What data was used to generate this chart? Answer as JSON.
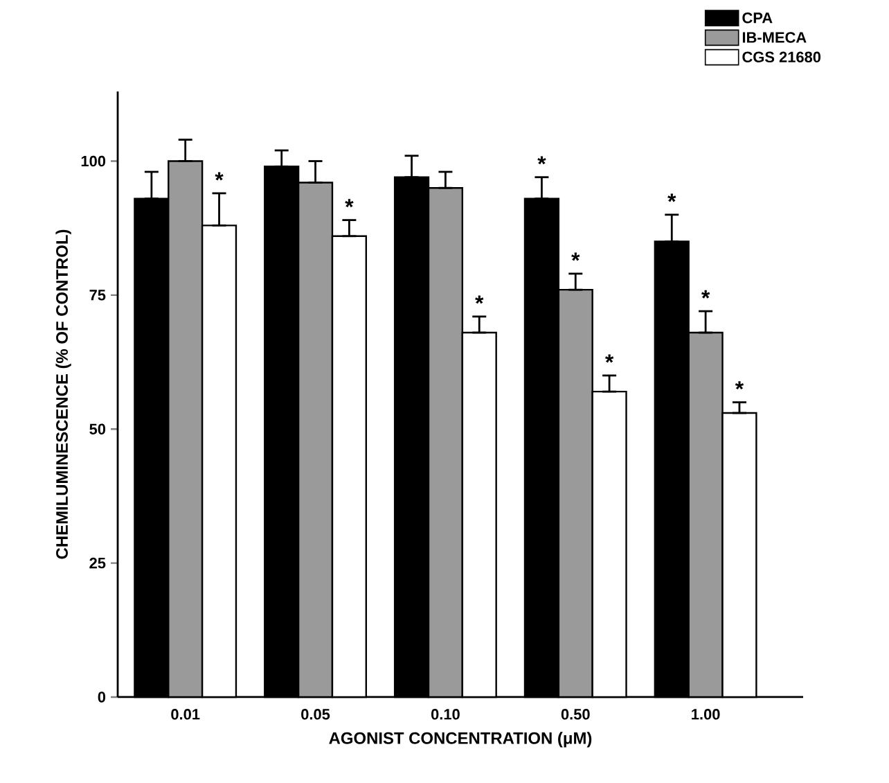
{
  "chart_data": {
    "type": "bar",
    "xlabel": "AGONIST CONCENTRATION (μM)",
    "ylabel": "CHEMILUMINESCENCE (% OF CONTROL)",
    "categories": [
      "0.01",
      "0.05",
      "0.10",
      "0.50",
      "1.00"
    ],
    "series": [
      {
        "name": "CPA",
        "color": "#000000",
        "values": [
          93,
          99,
          97,
          93,
          85
        ],
        "errors": [
          [
            93,
            98
          ],
          [
            99,
            102
          ],
          [
            97,
            101
          ],
          [
            93,
            97
          ],
          [
            85,
            90
          ]
        ],
        "value_labels": [
          null,
          null,
          null,
          "*",
          "*"
        ]
      },
      {
        "name": "IB-MECA",
        "color": "#9a9a9a",
        "values": [
          100,
          96,
          95,
          76,
          68
        ],
        "errors": [
          [
            100,
            104
          ],
          [
            96,
            100
          ],
          [
            95,
            98
          ],
          [
            76,
            79
          ],
          [
            68,
            72
          ]
        ],
        "value_labels": [
          null,
          null,
          null,
          "*",
          "*"
        ]
      },
      {
        "name": "CGS 21680",
        "color": "#ffffff",
        "values": [
          88,
          86,
          68,
          57,
          53
        ],
        "errors": [
          [
            88,
            94
          ],
          [
            86,
            89
          ],
          [
            68,
            71
          ],
          [
            57,
            60
          ],
          [
            53,
            55
          ]
        ],
        "value_labels": [
          "*",
          "*",
          "*",
          "*",
          "*"
        ]
      }
    ],
    "ylim": [
      0,
      113
    ],
    "yticks": [
      0,
      25,
      50,
      75,
      100
    ],
    "legend": "top right",
    "grid": false
  }
}
